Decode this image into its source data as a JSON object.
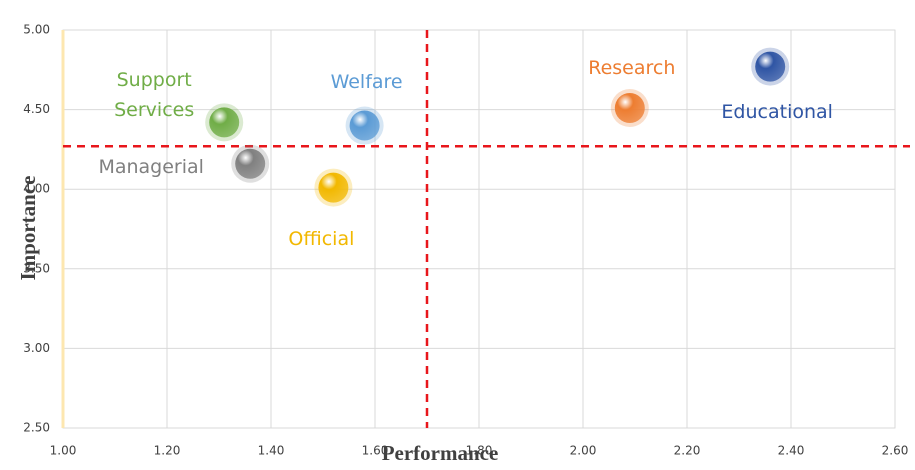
{
  "chart_data": {
    "type": "scatter",
    "x_label": "Performance",
    "y_label": "Importance",
    "series": [
      {
        "name": "Support Services",
        "color": "#70ad47",
        "x": [
          1.31
        ],
        "values": [
          4.42
        ]
      },
      {
        "name": "Welfare",
        "color": "#5b9bd5",
        "x": [
          1.58
        ],
        "values": [
          4.4
        ]
      },
      {
        "name": "Research",
        "color": "#ed7d31",
        "x": [
          2.09
        ],
        "values": [
          4.51
        ]
      },
      {
        "name": "Educational",
        "color": "#2f55a4",
        "x": [
          2.36
        ],
        "values": [
          4.77
        ]
      },
      {
        "name": "Managerial",
        "color": "#808080",
        "x": [
          1.36
        ],
        "values": [
          4.16
        ]
      },
      {
        "name": "Official",
        "color": "#f2b800",
        "x": [
          1.52
        ],
        "values": [
          4.01
        ]
      }
    ],
    "reference_lines": {
      "x": 1.7,
      "y": 4.27,
      "color": "#e8161b"
    },
    "xlim": [
      1.0,
      2.6
    ],
    "xticks": [
      {
        "value": 1.0,
        "label": "1.00"
      },
      {
        "value": 1.2,
        "label": "1.20"
      },
      {
        "value": 1.4,
        "label": "1.40"
      },
      {
        "value": 1.6,
        "label": "1.60"
      },
      {
        "value": 1.8,
        "label": "1.80"
      },
      {
        "value": 2.0,
        "label": "2.00"
      },
      {
        "value": 2.2,
        "label": "2.20"
      },
      {
        "value": 2.4,
        "label": "2.40"
      },
      {
        "value": 2.6,
        "label": "2.60"
      }
    ],
    "ylim": [
      2.5,
      5.0
    ],
    "yticks": [
      {
        "value": 2.5,
        "label": "2.50"
      },
      {
        "value": 3.0,
        "label": "3.00"
      },
      {
        "value": 3.5,
        "label": "3.50"
      },
      {
        "value": 4.0,
        "label": "4.00"
      },
      {
        "value": 4.5,
        "label": "4.50"
      },
      {
        "value": 5.0,
        "label": "5.00"
      }
    ],
    "grid": true,
    "axis_title_color": "#c00000"
  }
}
